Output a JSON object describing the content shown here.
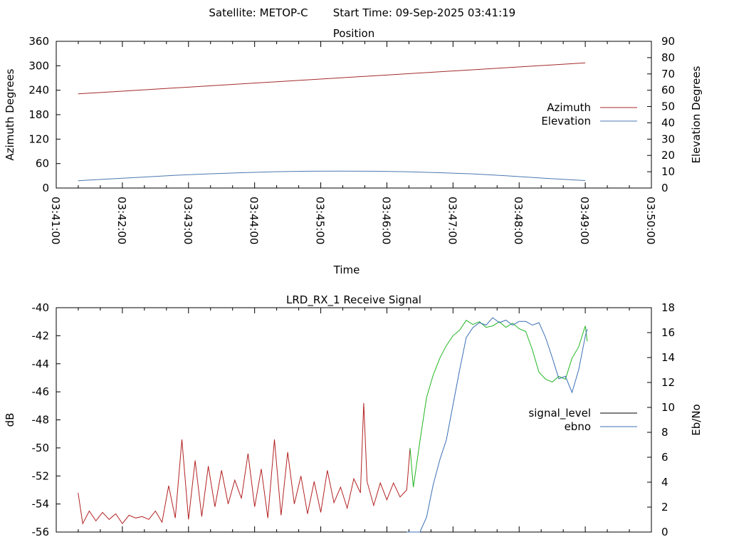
{
  "header": {
    "satellite_label": "Satellite: METOP-C",
    "start_time_label": "Start Time: 09-Sep-2025 03:41:19"
  },
  "colors": {
    "azimuth": "#a52a2a",
    "elevation": "#4a78b0",
    "signal_red": "#b22222",
    "signal_green": "#22b522",
    "ebno": "#3b6fb5",
    "legend_black": "#000000"
  },
  "chart_data": [
    {
      "type": "line",
      "title": "Position",
      "xlabel": "Time",
      "ylabel": "Azimuth Degrees",
      "y2label": "Elevation Degrees",
      "x_ticks": [
        "03:41:00",
        "03:42:00",
        "03:43:00",
        "03:44:00",
        "03:45:00",
        "03:46:00",
        "03:47:00",
        "03:48:00",
        "03:49:00",
        "03:50:00"
      ],
      "y_ticks": [
        "0",
        "60",
        "120",
        "180",
        "240",
        "300",
        "360"
      ],
      "y2_ticks": [
        "0",
        "10",
        "20",
        "30",
        "40",
        "50",
        "60",
        "70",
        "80",
        "90"
      ],
      "xlim_min": [
        41,
        50
      ],
      "ylim": [
        0,
        360
      ],
      "y2lim": [
        0,
        90
      ],
      "legend": "center-right",
      "series": [
        {
          "name": "Azimuth",
          "axis": "y",
          "x_min": [
            41.33,
            49.0
          ],
          "values": [
            231,
            307
          ]
        },
        {
          "name": "Elevation",
          "axis": "y2",
          "x_min": [
            41.33,
            41.8,
            42.3,
            42.8,
            43.3,
            43.8,
            44.3,
            44.8,
            45.3,
            45.8,
            46.3,
            46.8,
            47.3,
            47.8,
            48.3,
            49.0
          ],
          "values": [
            4.5,
            5.6,
            6.7,
            7.8,
            8.7,
            9.4,
            10.0,
            10.3,
            10.4,
            10.3,
            10.0,
            9.4,
            8.7,
            7.5,
            6.2,
            4.6
          ]
        }
      ]
    },
    {
      "type": "line",
      "title": "LRD_RX_1 Receive Signal",
      "ylabel": "dB",
      "y2label": "Eb/No",
      "y_ticks": [
        "-56",
        "-54",
        "-52",
        "-50",
        "-48",
        "-46",
        "-44",
        "-42",
        "-40"
      ],
      "y2_ticks": [
        "0",
        "2",
        "4",
        "6",
        "8",
        "10",
        "12",
        "14",
        "16",
        "18"
      ],
      "ylim": [
        -56,
        -40
      ],
      "y2lim": [
        0,
        18
      ],
      "xlim_min": [
        41,
        50
      ],
      "legend": "center-right",
      "series": [
        {
          "name": "signal_level",
          "axis": "y",
          "x_min": [
            41.33,
            41.4,
            41.5,
            41.6,
            41.7,
            41.8,
            41.9,
            42.0,
            42.1,
            42.2,
            42.3,
            42.4,
            42.5,
            42.6,
            42.7,
            42.8,
            42.9,
            43.0,
            43.1,
            43.2,
            43.3,
            43.4,
            43.5,
            43.6,
            43.7,
            43.8,
            43.9,
            44.0,
            44.1,
            44.2,
            44.3,
            44.4,
            44.5,
            44.6,
            44.7,
            44.8,
            44.9,
            45.0,
            45.1,
            45.2,
            45.3,
            45.4,
            45.5,
            45.6,
            45.65,
            45.7,
            45.8,
            45.9,
            46.0,
            46.1,
            46.2,
            46.3,
            46.35,
            46.4,
            46.5,
            46.6,
            46.7,
            46.8,
            46.9,
            47.0,
            47.1,
            47.2,
            47.3,
            47.4,
            47.5,
            47.6,
            47.7,
            47.8,
            47.9,
            48.0,
            48.1,
            48.2,
            48.3,
            48.4,
            48.5,
            48.6,
            48.7,
            48.8,
            48.9,
            49.0,
            49.03
          ],
          "values": [
            -53.2,
            -55.4,
            -54.5,
            -55.2,
            -54.6,
            -55.1,
            -54.7,
            -55.4,
            -54.8,
            -55.0,
            -54.9,
            -55.1,
            -54.5,
            -55.3,
            -52.7,
            -55.0,
            -49.4,
            -55.1,
            -50.9,
            -54.9,
            -51.3,
            -54.2,
            -51.6,
            -54.0,
            -52.3,
            -53.6,
            -50.4,
            -54.2,
            -51.5,
            -55.0,
            -49.4,
            -54.8,
            -50.3,
            -54.0,
            -52.0,
            -54.7,
            -52.4,
            -54.6,
            -51.6,
            -53.9,
            -52.8,
            -54.3,
            -52.2,
            -53.2,
            -46.8,
            -52.4,
            -54.1,
            -52.5,
            -53.7,
            -52.5,
            -53.5,
            -53.0,
            -50.0,
            -52.8,
            -49.5,
            -46.4,
            -44.8,
            -43.6,
            -42.7,
            -42.0,
            -41.6,
            -40.9,
            -41.2,
            -41.0,
            -41.4,
            -41.3,
            -41.0,
            -41.4,
            -41.1,
            -41.5,
            -41.7,
            -43.0,
            -44.6,
            -45.1,
            -45.3,
            -44.9,
            -45.1,
            -43.6,
            -42.8,
            -41.3,
            -42.4
          ]
        },
        {
          "name": "ebno",
          "axis": "y2",
          "x_min": [
            46.3,
            46.5,
            46.6,
            46.7,
            46.8,
            46.9,
            47.0,
            47.1,
            47.2,
            47.3,
            47.4,
            47.5,
            47.6,
            47.7,
            47.8,
            47.9,
            48.0,
            48.1,
            48.2,
            48.3,
            48.4,
            48.5,
            48.6,
            48.7,
            48.8,
            48.9,
            49.0,
            49.03
          ],
          "values": [
            0,
            0,
            1.2,
            3.8,
            5.8,
            7.4,
            10.2,
            13.0,
            15.6,
            16.4,
            16.8,
            16.6,
            17.2,
            16.8,
            17.0,
            16.6,
            16.9,
            16.9,
            16.6,
            16.8,
            15.6,
            14.0,
            12.3,
            12.5,
            11.2,
            13.0,
            15.7,
            16.3
          ]
        }
      ]
    }
  ]
}
